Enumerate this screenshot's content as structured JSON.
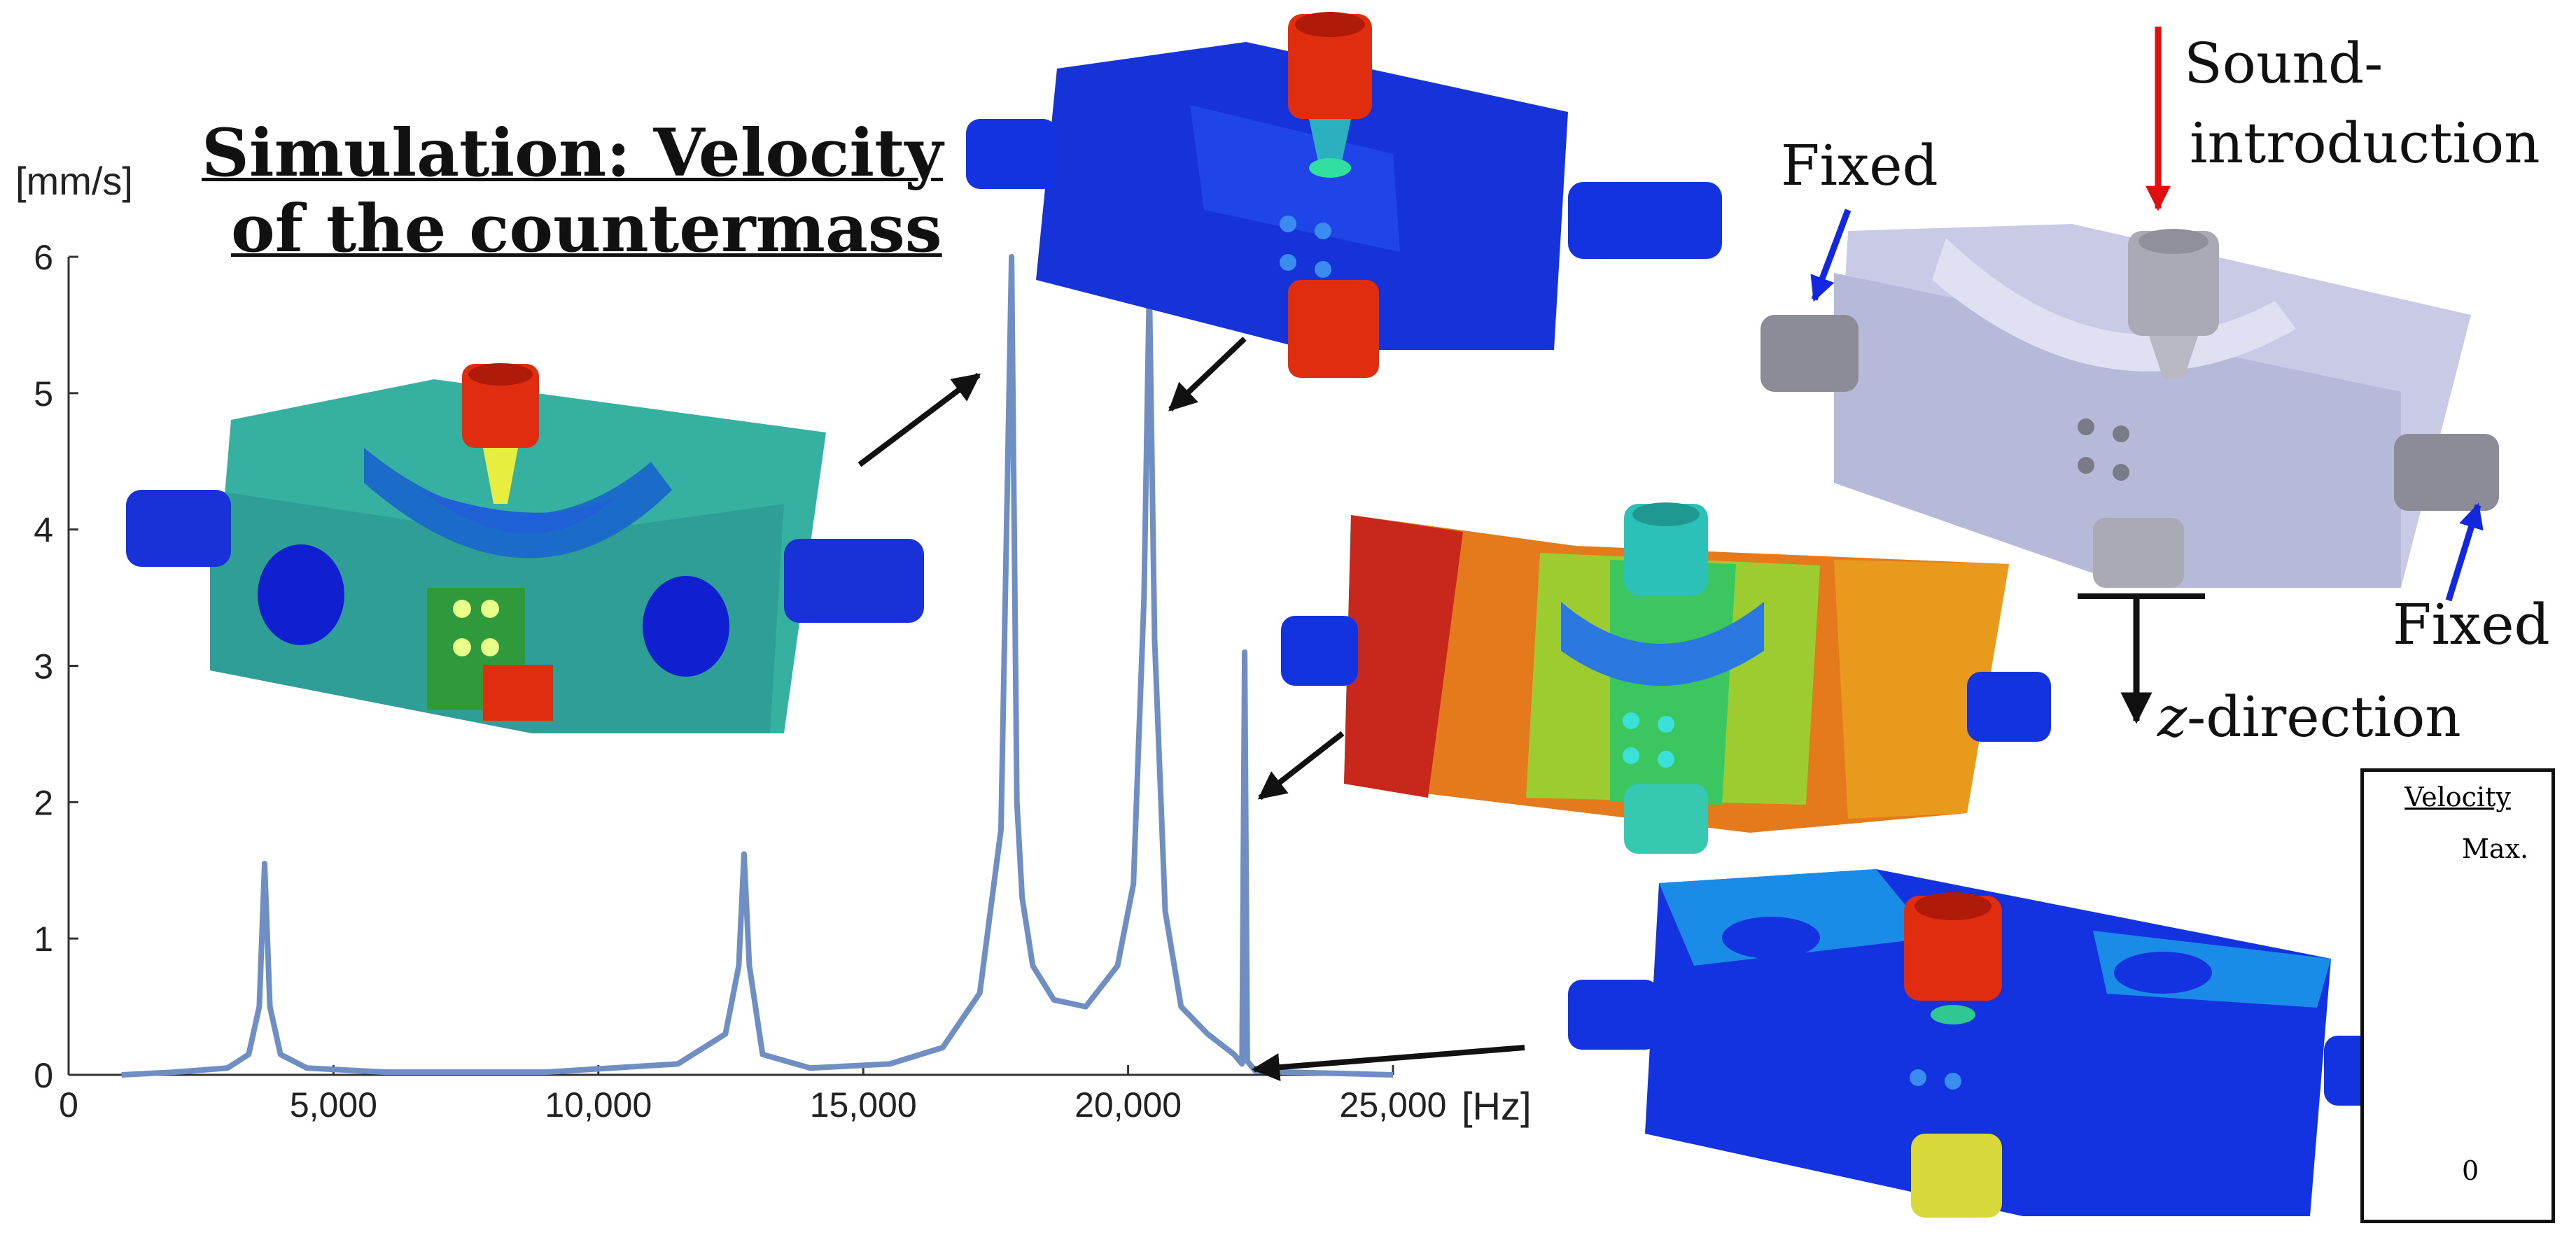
{
  "title": {
    "line1": "Simulation: Velocity",
    "line2": "of the countermass"
  },
  "chart_data": {
    "type": "line",
    "ylabel": "[mm/s]",
    "xunit": "[Hz]",
    "xlim": [
      0,
      25000
    ],
    "ylim": [
      0,
      6
    ],
    "x_ticks": [
      0,
      5000,
      10000,
      15000,
      20000,
      25000
    ],
    "x_tick_labels": [
      "0",
      "5,000",
      "10,000",
      "15,000",
      "20,000",
      "25,000"
    ],
    "y_ticks": [
      0,
      1,
      2,
      3,
      4,
      5,
      6
    ],
    "y_tick_labels": [
      "0",
      "1",
      "2",
      "3",
      "4",
      "5",
      "6"
    ],
    "series": [
      {
        "color": "#6f8fc4",
        "x": [
          1000,
          2000,
          3000,
          3400,
          3600,
          3700,
          3800,
          4000,
          4500,
          6000,
          9000,
          11500,
          12400,
          12650,
          12750,
          12850,
          13100,
          14000,
          15500,
          16500,
          17200,
          17600,
          17800,
          17900,
          18000,
          18200,
          18600,
          19200,
          19800,
          20100,
          20300,
          20400,
          20500,
          20700,
          21000,
          21500,
          22000,
          22150,
          22200,
          22250,
          22400,
          23000,
          25000
        ],
        "y": [
          0.0,
          0.02,
          0.05,
          0.15,
          0.5,
          1.55,
          0.5,
          0.15,
          0.05,
          0.02,
          0.02,
          0.08,
          0.3,
          0.8,
          1.62,
          0.8,
          0.15,
          0.05,
          0.08,
          0.2,
          0.6,
          1.8,
          6.0,
          2.0,
          1.3,
          0.8,
          0.55,
          0.5,
          0.8,
          1.4,
          3.5,
          5.8,
          3.2,
          1.2,
          0.5,
          0.3,
          0.15,
          0.08,
          3.1,
          0.1,
          0.03,
          0.02,
          0.0
        ]
      }
    ]
  },
  "annotations": {
    "sound": "Sound-",
    "sound2": "introduction",
    "fixed_left": "Fixed",
    "fixed_right": "Fixed",
    "zdir_var": "z",
    "zdir_rest": "-direction"
  },
  "legend": {
    "title": "Velocity",
    "max_label": "Max.",
    "min_label": "0",
    "colors": [
      "#d40000",
      "#ff8c00",
      "#ffc000",
      "#ffff00",
      "#aaee00",
      "#22cc22",
      "#22ddaa",
      "#22eedd",
      "#22bbee",
      "#1a88ee",
      "#0a2ef0"
    ]
  },
  "colors": {
    "fem_blue": "#1433e0",
    "fem_red": "#e02d10",
    "cad_gray": "#c9cbe4",
    "arrow_red": "#e01010",
    "arrow_blue": "#1427e0"
  }
}
